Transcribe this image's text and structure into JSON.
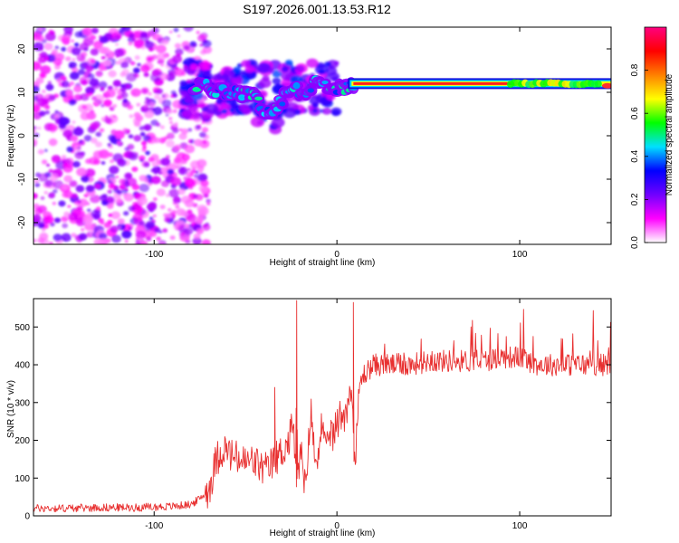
{
  "figure_title": "S197.2026.001.13.53.R12",
  "chart_data": [
    {
      "type": "heatmap",
      "title": "S197.2026.001.13.53.R12",
      "xlabel": "Height of straight line (km)",
      "ylabel": "Frequency (Hz)",
      "xlim": [
        -166,
        150
      ],
      "ylim": [
        -25,
        25
      ],
      "xticks": [
        -100,
        0,
        100
      ],
      "yticks": [
        -20,
        -10,
        0,
        10,
        20
      ],
      "colorbar": {
        "label": "Normalized spectral amplitude",
        "range": [
          0,
          1
        ],
        "ticks": [
          0.0,
          0.2,
          0.4,
          0.6,
          0.8
        ],
        "tick_labels": [
          "0.0",
          "0.2",
          "0.4",
          "0.6",
          "0.8"
        ],
        "colors": [
          "#ffffff",
          "#ff00ff",
          "#7000ff",
          "#0000ff",
          "#00e0ff",
          "#00ff00",
          "#ffff00",
          "#ff8000",
          "#ff0000",
          "#ff0080"
        ]
      },
      "ridge": [
        {
          "x": -75,
          "y": 11.5
        },
        {
          "x": -65,
          "y": 10.5
        },
        {
          "x": -55,
          "y": 10.0
        },
        {
          "x": -45,
          "y": 9.0
        },
        {
          "x": -38,
          "y": 5.0
        },
        {
          "x": -32,
          "y": 7.0
        },
        {
          "x": -25,
          "y": 11.0
        },
        {
          "x": -18,
          "y": 9.5
        },
        {
          "x": -12,
          "y": 12.0
        },
        {
          "x": -5,
          "y": 11.0
        },
        {
          "x": 0,
          "y": 10.5
        },
        {
          "x": 10,
          "y": 12.0
        },
        {
          "x": 150,
          "y": 11.5
        }
      ],
      "noise_region_x": [
        -166,
        -80
      ]
    },
    {
      "type": "line",
      "xlabel": "Height of straight line (km)",
      "ylabel": "SNR (10 * v/v)",
      "xlim": [
        -166,
        150
      ],
      "ylim": [
        0,
        575
      ],
      "xticks": [
        -100,
        0,
        100
      ],
      "yticks": [
        0,
        100,
        200,
        300,
        400,
        500
      ],
      "line_color": "#e83030",
      "series": [
        {
          "name": "SNR",
          "x": [
            -166,
            -150,
            -130,
            -110,
            -90,
            -80,
            -75,
            -70,
            -66,
            -62,
            -58,
            -54,
            -50,
            -46,
            -42,
            -38,
            -34,
            -30,
            -26,
            -24,
            -22,
            -20,
            -18,
            -16,
            -14,
            -12,
            -10,
            -8,
            -6,
            -4,
            -2,
            0,
            2,
            4,
            6,
            8,
            10,
            12,
            14,
            16,
            18,
            20,
            25,
            30,
            40,
            50,
            60,
            70,
            80,
            90,
            100,
            110,
            120,
            130,
            140,
            150
          ],
          "y": [
            20,
            20,
            22,
            22,
            25,
            30,
            45,
            70,
            150,
            180,
            160,
            150,
            140,
            145,
            130,
            120,
            150,
            170,
            200,
            260,
            50,
            200,
            60,
            160,
            280,
            130,
            190,
            250,
            150,
            230,
            210,
            240,
            270,
            270,
            300,
            340,
            120,
            330,
            370,
            380,
            390,
            400,
            400,
            400,
            400,
            410,
            410,
            410,
            410,
            420,
            420,
            400,
            400,
            400,
            400,
            400
          ]
        }
      ],
      "peaks": [
        {
          "x": -22,
          "y": 570
        },
        {
          "x": 9,
          "y": 565
        },
        {
          "x": -34,
          "y": 340
        }
      ],
      "noise_amplitude": 30
    }
  ]
}
